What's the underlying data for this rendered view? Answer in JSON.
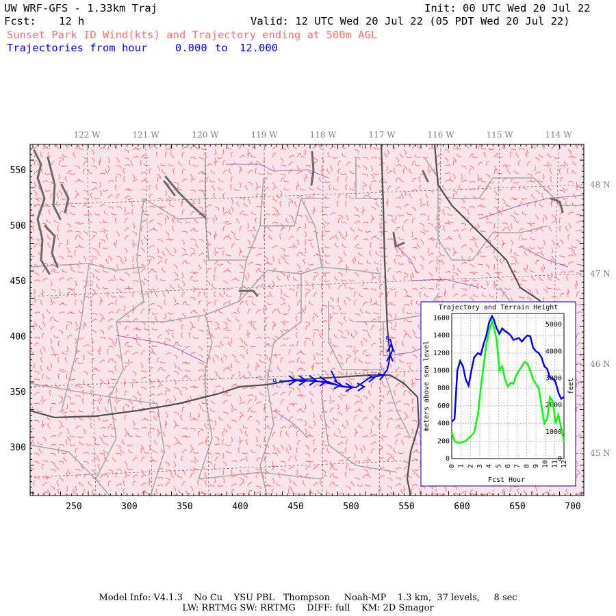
{
  "header": {
    "model_title": "UW WRF-GFS - 1.33km Traj",
    "init": "Init: 00 UTC Wed 20 Jul 22",
    "fcst_label": "Fcst:",
    "fcst_value": "12 h",
    "valid": "Valid: 12 UTC Wed 20 Jul 22 (05 PDT Wed 20 Jul 22)",
    "product": "Sunset Park ID Wind(kts) and Trajectory ending at 500m AGL",
    "traj_range_label": "Trajectories from hour",
    "traj_start": "0.000",
    "traj_to": "to",
    "traj_end": "12.000"
  },
  "map": {
    "x_ticks": [
      "250",
      "300",
      "350",
      "400",
      "450",
      "500",
      "550",
      "600",
      "650",
      "700"
    ],
    "y_ticks": [
      "300",
      "350",
      "400",
      "450",
      "500",
      "550"
    ],
    "lon_labels": [
      "122 W",
      "121 W",
      "120 W",
      "119 W",
      "118 W",
      "117 W",
      "116 W",
      "115 W",
      "114 W"
    ],
    "lat_labels": [
      "48 N",
      "47 N",
      "46 N",
      "45 N"
    ],
    "trajectory_markers": [
      "9",
      "9"
    ],
    "colors": {
      "wind_barbs": "#ff6666",
      "terrain_fill": "#fbe6ee",
      "state_borders": "#505050",
      "county_lines": "#a8a8a8",
      "rivers": "#b060b0",
      "coast": "#666666",
      "trajectory": "#0000ff"
    }
  },
  "inset": {
    "title": "Trajectory and Terrain Height",
    "ylabel_left": "meters above sea level",
    "ylabel_right": "feet",
    "xlabel": "Fcst Hour",
    "left_ticks": [
      "0",
      "200",
      "400",
      "600",
      "800",
      "1000",
      "1200",
      "1400",
      "1600"
    ],
    "right_ticks": [
      "0",
      "1000",
      "2000",
      "3000",
      "4000",
      "5000"
    ],
    "x_ticks": [
      "0",
      "1",
      "2",
      "3",
      "4",
      "5",
      "6",
      "7",
      "8",
      "9",
      "10",
      "11",
      "12"
    ],
    "colors": {
      "trajectory": "#0000ff",
      "terrain": "#00ff00",
      "frame": "#0000cc"
    }
  },
  "chart_data": {
    "type": "line",
    "title": "Trajectory and Terrain Height",
    "xlabel": "Fcst Hour",
    "ylabel": "meters above sea level",
    "y2label": "feet",
    "xlim": [
      0,
      12
    ],
    "ylim": [
      0,
      1700
    ],
    "grid": true,
    "series": [
      {
        "x": [
          0,
          0.3,
          0.6,
          0.9,
          1.2,
          1.5,
          1.8,
          2.1,
          2.4,
          2.8,
          3.1,
          3.4,
          3.7,
          4.0,
          4.3,
          4.5,
          4.8,
          5.1,
          5.4,
          5.7,
          6.0,
          6.3,
          6.6,
          6.9,
          7.2,
          7.5,
          7.8,
          8.1,
          8.4,
          8.7,
          9.0,
          9.3,
          9.6,
          9.9,
          10.2,
          10.5,
          10.8,
          11.1,
          11.4,
          11.7,
          12.0
        ],
        "values": [
          420,
          450,
          1000,
          1110,
          1050,
          900,
          830,
          1000,
          1150,
          1200,
          1180,
          1300,
          1400,
          1550,
          1620,
          1580,
          1480,
          1420,
          1480,
          1450,
          1430,
          1400,
          1350,
          1360,
          1370,
          1330,
          1370,
          1400,
          1390,
          1260,
          1220,
          1200,
          1150,
          1050,
          1020,
          920,
          910,
          870,
          750,
          680,
          700
        ]
      },
      {
        "x": [
          0,
          0.3,
          0.6,
          0.9,
          1.2,
          1.5,
          1.8,
          2.1,
          2.4,
          2.8,
          3.1,
          3.4,
          3.7,
          4.0,
          4.3,
          4.5,
          4.8,
          5.1,
          5.4,
          5.7,
          6.0,
          6.3,
          6.6,
          6.9,
          7.2,
          7.5,
          7.8,
          8.1,
          8.4,
          8.7,
          9.0,
          9.3,
          9.6,
          9.9,
          10.2,
          10.5,
          10.8,
          11.1,
          11.4,
          11.7,
          12.0
        ],
        "values": [
          300,
          200,
          180,
          180,
          190,
          200,
          230,
          260,
          300,
          500,
          800,
          1050,
          1300,
          1450,
          1560,
          1500,
          1350,
          1000,
          1050,
          900,
          820,
          860,
          850,
          950,
          1000,
          1050,
          1100,
          1080,
          1000,
          900,
          850,
          800,
          600,
          400,
          450,
          700,
          650,
          400,
          500,
          350,
          200
        ]
      }
    ]
  },
  "footer": {
    "line1": "Model Info: V4.1.3    No Cu    YSU PBL   Thompson     Noah-MP    1.3 km,  37 levels,     8 sec",
    "line2": "LW: RRTMG SW: RRTMG    DIFF: full    KM: 2D Smagor"
  }
}
